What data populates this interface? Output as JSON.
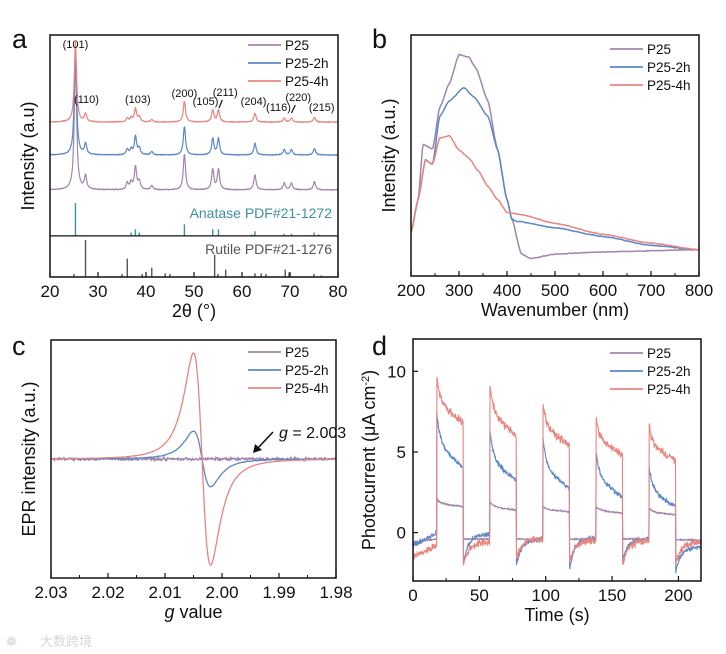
{
  "colors": {
    "P25": "#a086ab",
    "P25-2h": "#5b87c8",
    "P25-4h": "#e9847e",
    "anatase": "#3c8fa3",
    "rutile": "#555555",
    "axis": "#111111"
  },
  "watermark": "大数跨境",
  "chart_data": [
    {
      "panel": "a",
      "type": "line",
      "xlabel": "2θ (°)",
      "ylabel": "Intensity (a.u)",
      "xlim": [
        20,
        80
      ],
      "ylim": [
        0,
        100
      ],
      "xticks": [
        "20",
        "30",
        "40",
        "50",
        "60",
        "70",
        "80"
      ],
      "xtick_values": [
        20,
        30,
        40,
        50,
        60,
        70,
        80
      ],
      "legend": [
        "P25",
        "P25-2h",
        "P25-4h"
      ],
      "legend_position": "top-right",
      "separator_level": 17,
      "peaks": [
        {
          "pos": 25.3,
          "rel": 1.0
        },
        {
          "pos": 27.4,
          "rel": 0.1
        },
        {
          "pos": 36.1,
          "rel": 0.05
        },
        {
          "pos": 36.9,
          "rel": 0.05
        },
        {
          "pos": 37.8,
          "rel": 0.17
        },
        {
          "pos": 38.6,
          "rel": 0.06
        },
        {
          "pos": 41.2,
          "rel": 0.03
        },
        {
          "pos": 48.0,
          "rel": 0.26
        },
        {
          "pos": 53.9,
          "rel": 0.15
        },
        {
          "pos": 55.1,
          "rel": 0.15
        },
        {
          "pos": 62.7,
          "rel": 0.11
        },
        {
          "pos": 68.8,
          "rel": 0.05
        },
        {
          "pos": 70.3,
          "rel": 0.05
        },
        {
          "pos": 75.1,
          "rel": 0.06
        }
      ],
      "series": [
        {
          "name": "P25",
          "baseline": 36,
          "scale": 56
        },
        {
          "name": "P25-2h",
          "baseline": 50.4,
          "scale": 45
        },
        {
          "name": "P25-4h",
          "baseline": 64,
          "scale": 33
        }
      ],
      "peak_labels": [
        {
          "text": "(101)",
          "pos": 25.3
        },
        {
          "text": "(110)",
          "pos": 27.6
        },
        {
          "text": "(103)",
          "pos": 38.3
        },
        {
          "text": "(200)",
          "pos": 48.0
        },
        {
          "text": "(105)",
          "pos": 52.4
        },
        {
          "text": "(211)",
          "pos": 56.5
        },
        {
          "text": "(204)",
          "pos": 62.4
        },
        {
          "text": "(116)",
          "pos": 67.6
        },
        {
          "text": "(220)",
          "pos": 71.7
        },
        {
          "text": "(215)",
          "pos": 76.6
        }
      ],
      "references": [
        {
          "name": "Anatase PDF#21-1272",
          "base": 17,
          "max": 13.6,
          "lines": [
            [
              25.3,
              100
            ],
            [
              36.9,
              10
            ],
            [
              37.8,
              20
            ],
            [
              38.6,
              10
            ],
            [
              48.0,
              35
            ],
            [
              53.9,
              20
            ],
            [
              55.1,
              20
            ],
            [
              62.1,
              4
            ],
            [
              62.7,
              14
            ],
            [
              68.8,
              6
            ],
            [
              70.3,
              6
            ],
            [
              74.1,
              2
            ],
            [
              75.0,
              10
            ],
            [
              76.0,
              4
            ]
          ]
        },
        {
          "name": "Rutile PDF#21-1276",
          "base": 0,
          "max": 15.3,
          "lines": [
            [
              27.4,
              100
            ],
            [
              36.1,
              50
            ],
            [
              39.2,
              8
            ],
            [
              41.2,
              25
            ],
            [
              44.0,
              10
            ],
            [
              54.3,
              60
            ],
            [
              56.6,
              20
            ],
            [
              62.7,
              10
            ],
            [
              64.0,
              10
            ],
            [
              65.5,
              2
            ],
            [
              69.0,
              20
            ],
            [
              69.8,
              12
            ],
            [
              72.4,
              2
            ],
            [
              74.4,
              2
            ],
            [
              76.5,
              4
            ]
          ]
        }
      ]
    },
    {
      "panel": "b",
      "type": "line",
      "xlabel": "Wavenumber (nm)",
      "ylabel": "Intensity (a.u.)",
      "xlim": [
        200,
        800
      ],
      "ylim": [
        0,
        110
      ],
      "xticks": [
        "200",
        "300",
        "400",
        "500",
        "600",
        "700",
        "800"
      ],
      "xtick_values": [
        200,
        300,
        400,
        500,
        600,
        700,
        800
      ],
      "legend": [
        "P25",
        "P25-2h",
        "P25-4h"
      ],
      "legend_position": "top-right",
      "series": [
        {
          "name": "P25",
          "x": [
            200,
            215,
            225,
            245,
            260,
            280,
            300,
            320,
            335,
            360,
            380,
            400,
            410,
            430,
            450,
            500,
            600,
            800
          ],
          "y": [
            20,
            35,
            60,
            58,
            77,
            88,
            101,
            100,
            95,
            80,
            58,
            35,
            26,
            10,
            8,
            10,
            11,
            12
          ]
        },
        {
          "name": "P25-2h",
          "x": [
            200,
            215,
            230,
            245,
            260,
            280,
            310,
            330,
            360,
            380,
            400,
            410,
            420,
            500,
            600,
            700,
            800
          ],
          "y": [
            20,
            35,
            53,
            51,
            73,
            80,
            86,
            82,
            73,
            58,
            35,
            26,
            25,
            22,
            18,
            14,
            12
          ]
        },
        {
          "name": "P25-4h",
          "x": [
            200,
            215,
            230,
            245,
            260,
            280,
            300,
            320,
            340,
            360,
            380,
            400,
            430,
            500,
            600,
            700,
            800
          ],
          "y": [
            20,
            35,
            53,
            51,
            63,
            64,
            57.5,
            54,
            48,
            41,
            35,
            29,
            28,
            24,
            19,
            15,
            12
          ]
        }
      ]
    },
    {
      "panel": "c",
      "type": "line",
      "xlabel_italic": "g",
      "xlabel": " value",
      "ylabel": "EPR intensity (a.u.)",
      "xlim": [
        2.03,
        1.98
      ],
      "ylim": [
        -1.2,
        1.2
      ],
      "xticks": [
        "2.03",
        "2.02",
        "2.01",
        "2.00",
        "1.99",
        "1.98"
      ],
      "xtick_values": [
        2.03,
        2.02,
        2.01,
        2.0,
        1.99,
        1.98
      ],
      "legend": [
        "P25",
        "P25-2h",
        "P25-4h"
      ],
      "legend_position": "top-right",
      "annotation": {
        "italic": "g",
        "text": " = 2.003",
        "g": 2.003
      },
      "series": [
        {
          "name": "P25",
          "center": 2.0035,
          "amplitude": 0.0,
          "noise": 0.025
        },
        {
          "name": "P25-2h",
          "center": 2.0035,
          "amplitude": 0.28,
          "noise": 0.005
        },
        {
          "name": "P25-4h",
          "center": 2.0035,
          "amplitude": 1.07,
          "noise": 0.0
        }
      ],
      "peak_g": 2.005,
      "trough_g": 2.002
    },
    {
      "panel": "d",
      "type": "line",
      "xlabel": "Time (s)",
      "ylabel": "Photocurrent (μA cm⁻²)",
      "ylabel_parts": [
        "Photocurrent (μA cm",
        "-2",
        ")"
      ],
      "xlim": [
        0,
        217
      ],
      "ylim": [
        -3,
        12
      ],
      "xticks": [
        "0",
        "50",
        "100",
        "150",
        "200"
      ],
      "xtick_values": [
        0,
        50,
        100,
        150,
        200
      ],
      "yticks": [
        "0",
        "5",
        "10"
      ],
      "ytick_values": [
        0,
        5,
        10
      ],
      "legend": [
        "P25",
        "P25-2h",
        "P25-4h"
      ],
      "legend_position": "top-right",
      "light_on": [
        18,
        58,
        98,
        138,
        178
      ],
      "period_on_s": 20,
      "series": [
        {
          "name": "P25",
          "initial": [
            -0.6,
            -0.4
          ],
          "noise": 0.08,
          "on": [
            [
              2.1,
              1.6
            ],
            [
              1.9,
              1.4
            ],
            [
              1.6,
              1.3
            ],
            [
              1.6,
              1.2
            ],
            [
              1.5,
              1.1
            ]
          ],
          "off": [
            [
              -0.4,
              -0.4
            ],
            [
              -0.4,
              -0.4
            ],
            [
              -0.4,
              -0.4
            ],
            [
              -0.4,
              -0.4
            ],
            [
              -0.45,
              -0.45
            ]
          ]
        },
        {
          "name": "P25-2h",
          "initial": [
            -0.8,
            0.0
          ],
          "noise": 0.22,
          "on": [
            [
              7.4,
              4.0
            ],
            [
              6.3,
              3.2
            ],
            [
              5.8,
              2.7
            ],
            [
              5.0,
              2.2
            ],
            [
              4.0,
              1.6
            ]
          ],
          "off": [
            [
              -1.9,
              -0.1
            ],
            [
              -2.0,
              -0.4
            ],
            [
              -2.3,
              -0.3
            ],
            [
              -1.7,
              -0.4
            ],
            [
              -2.4,
              -0.9
            ]
          ]
        },
        {
          "name": "P25-4h",
          "initial": [
            -1.5,
            -0.8
          ],
          "noise": 0.32,
          "on": [
            [
              9.7,
              6.8
            ],
            [
              9.2,
              6.0
            ],
            [
              8.0,
              5.4
            ],
            [
              7.1,
              4.8
            ],
            [
              6.6,
              4.5
            ]
          ],
          "off": [
            [
              -2.0,
              -0.6
            ],
            [
              -1.6,
              -0.4
            ],
            [
              -1.8,
              -0.5
            ],
            [
              -2.0,
              -0.5
            ],
            [
              -2.0,
              -0.6
            ]
          ]
        }
      ]
    }
  ],
  "panel_letters": [
    "a",
    "b",
    "c",
    "d"
  ]
}
